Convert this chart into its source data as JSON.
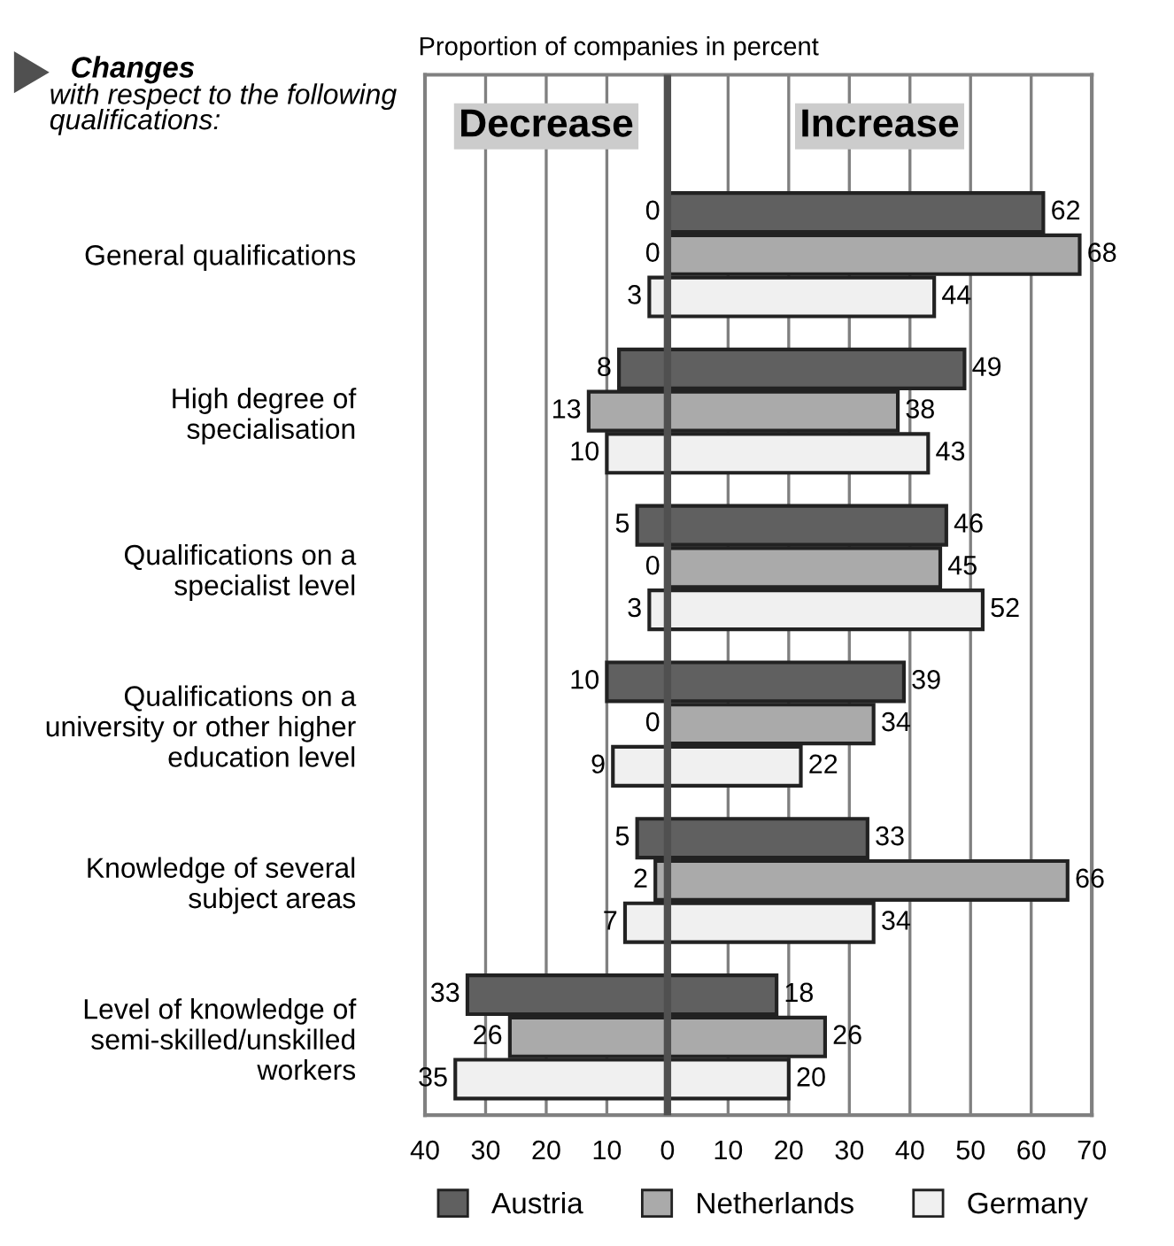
{
  "chart_data": {
    "type": "bar",
    "orientation": "horizontal",
    "title": "Proportion of companies in percent",
    "categories": [
      "General qualifications",
      "High degree of specialisation",
      "Qualifications on a specialist level",
      "Qualifications on a university or other higher education level",
      "Knowledge of several subject areas",
      "Level of knowledge of semi-skilled/unskilled workers"
    ],
    "series": [
      {
        "color": "#606060",
        "values": [
          0,
          8,
          5,
          10,
          5,
          33
        ],
        "base": [
          0,
          -8,
          -5,
          -10,
          -5,
          -33
        ]
      },
      {
        "name": "Austria",
        "color": "#606060",
        "values": [
          62,
          49,
          46,
          39,
          33,
          18
        ]
      },
      {
        "color": "#aaaaaa",
        "values": [
          0,
          13,
          0,
          0,
          2,
          26
        ],
        "base": [
          0,
          -13,
          0,
          0,
          -2,
          -26
        ]
      },
      {
        "name": "Netherlands",
        "color": "#aaaaaa",
        "values": [
          68,
          38,
          45,
          34,
          66,
          26
        ]
      },
      {
        "color": "#f0f0f0",
        "values": [
          3,
          10,
          3,
          9,
          7,
          35
        ],
        "base": [
          -3,
          -10,
          -3,
          -9,
          -7,
          -35
        ]
      },
      {
        "name": "Germany",
        "color": "#f0f0f0",
        "values": [
          44,
          43,
          52,
          22,
          34,
          20
        ]
      }
    ],
    "xlim": [
      -40,
      70
    ],
    "xticks": [
      {
        "value": -40,
        "label": "40"
      },
      {
        "value": -30,
        "label": "30"
      },
      {
        "value": -20,
        "label": "20"
      },
      {
        "value": -10,
        "label": "10"
      },
      0,
      10,
      20,
      30,
      40,
      50,
      60,
      70
    ],
    "ref_lines": [
      {
        "axis": "x",
        "value": 0,
        "color": "#505050"
      }
    ],
    "annotations": [
      "Changes",
      "with respect to the following qualifications:",
      "Decrease",
      "Increase"
    ],
    "data_labels": true,
    "grid": "x",
    "legend": "bottom"
  }
}
